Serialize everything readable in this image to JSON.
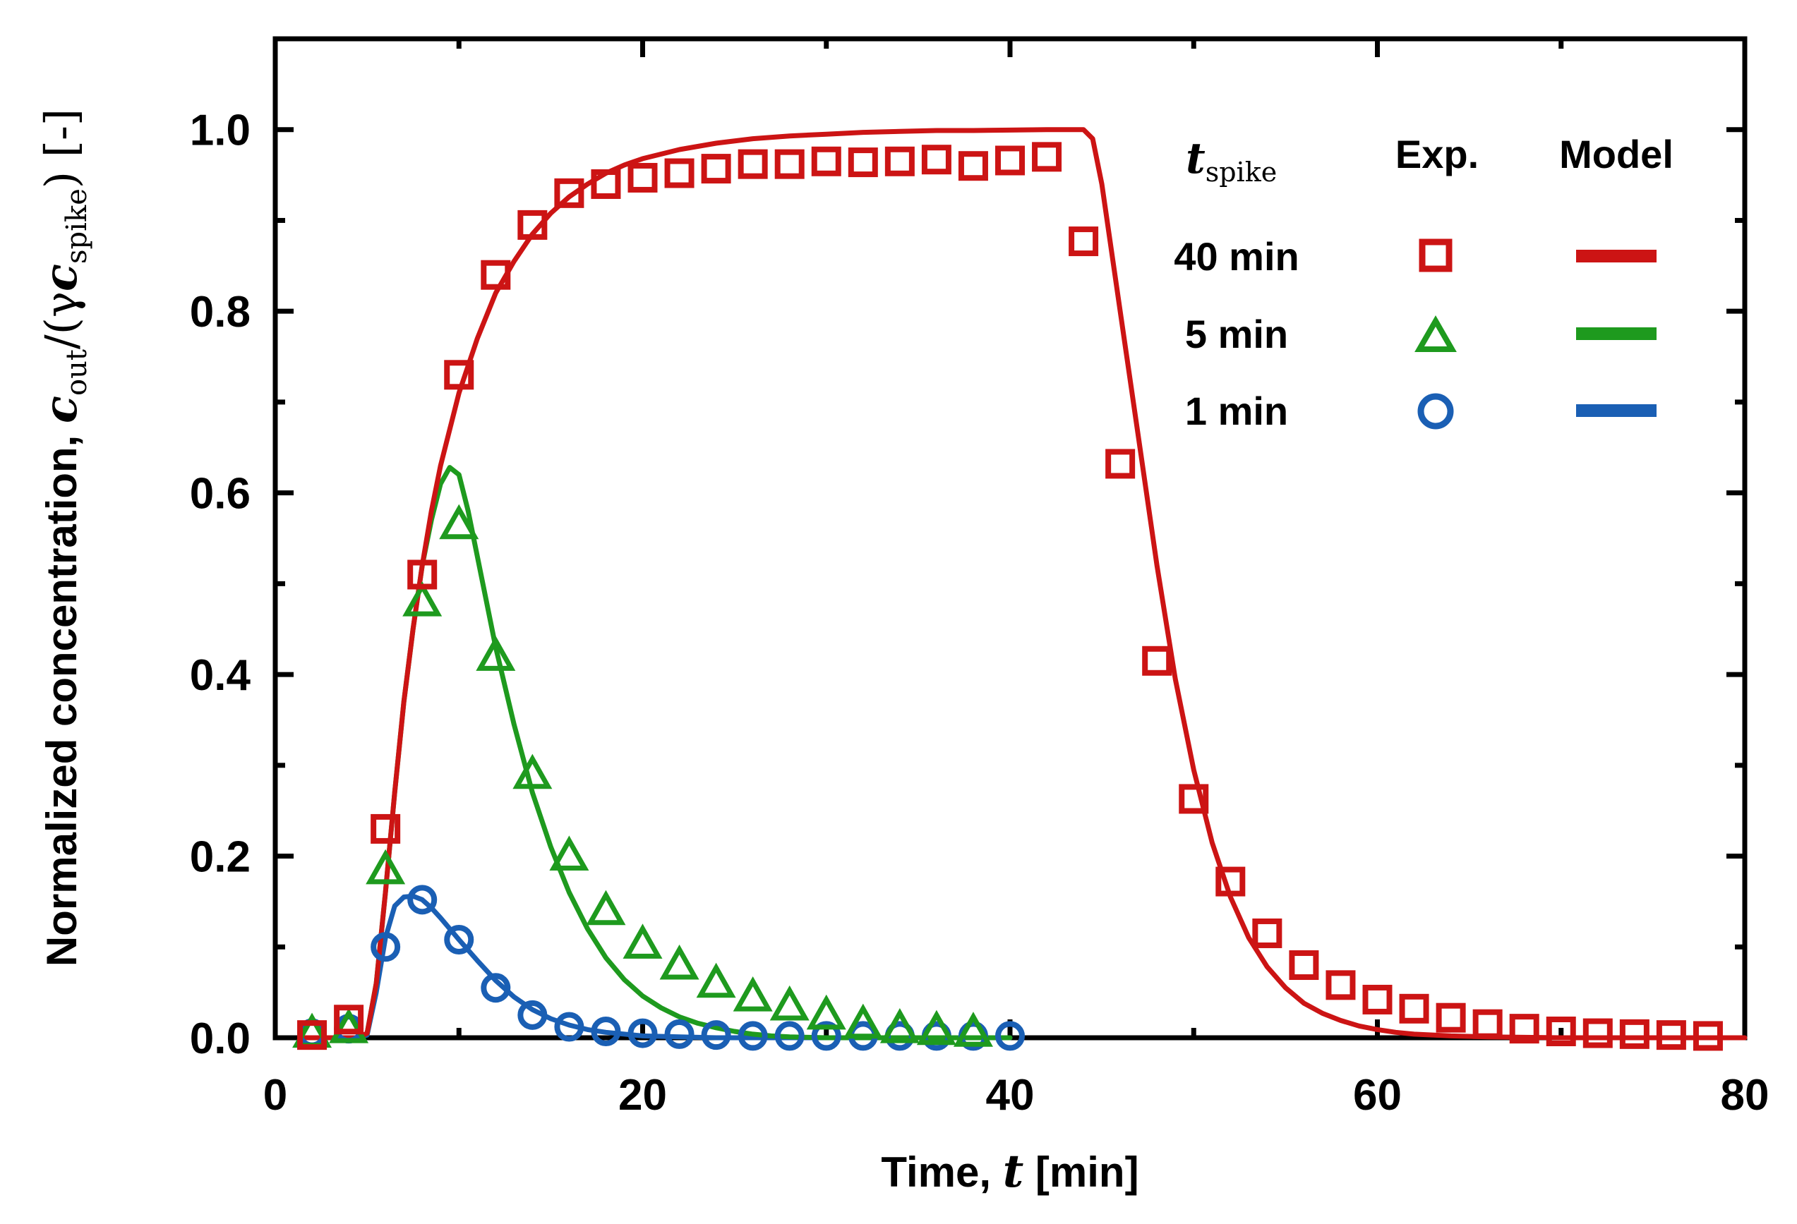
{
  "chart_data": {
    "type": "line",
    "title": "",
    "xlabel": "Time, t [min]",
    "xlabel_parts": {
      "prefix": "Time, ",
      "var": "t",
      "suffix": " [min]"
    },
    "ylabel": "Normalized concentration, c_out/(γ c_spike) [-]",
    "ylabel_parts": {
      "prefix": "Normalized concentration, ",
      "var": "c",
      "sub_out": "out",
      "open": "/(γ",
      "var2": "c",
      "sub_spike": "spike",
      "close": ") [-]"
    },
    "xlim": [
      0,
      80
    ],
    "ylim": [
      0,
      1.1
    ],
    "xticks": [
      0,
      20,
      40,
      60,
      80
    ],
    "xtick_labels": [
      "0",
      "20",
      "40",
      "60",
      "80"
    ],
    "yticks": [
      0.0,
      0.2,
      0.4,
      0.6,
      0.8,
      1.0
    ],
    "ytick_labels": [
      "0.0",
      "0.2",
      "0.4",
      "0.6",
      "0.8",
      "1.0"
    ],
    "legend": {
      "position": "top-right",
      "header_var": "t",
      "header_sub": "spike",
      "header_exp": "Exp.",
      "header_model": "Model",
      "entries": [
        "40 min",
        "5 min",
        "1 min"
      ]
    },
    "series": [
      {
        "name": "40 min",
        "color": "#cc1414",
        "marker": "square",
        "exp_x": [
          2,
          4,
          6,
          8,
          10,
          12,
          14,
          16,
          18,
          20,
          22,
          24,
          26,
          28,
          30,
          32,
          34,
          36,
          38,
          40,
          42,
          44,
          46,
          48,
          50,
          52,
          54,
          56,
          58,
          60,
          62,
          64,
          66,
          68,
          70,
          72,
          74,
          76,
          78
        ],
        "exp_y": [
          0.003,
          0.02,
          0.23,
          0.51,
          0.73,
          0.84,
          0.895,
          0.93,
          0.94,
          0.947,
          0.952,
          0.957,
          0.962,
          0.962,
          0.965,
          0.964,
          0.965,
          0.967,
          0.96,
          0.966,
          0.97,
          0.877,
          0.632,
          0.415,
          0.263,
          0.172,
          0.115,
          0.08,
          0.058,
          0.042,
          0.032,
          0.022,
          0.015,
          0.01,
          0.007,
          0.005,
          0.004,
          0.003,
          0.002
        ],
        "model_x": [
          1.5,
          3,
          4.5,
          5,
          5.5,
          6,
          6.5,
          7,
          7.5,
          8,
          8.5,
          9,
          10,
          11,
          12,
          13,
          14,
          15,
          16,
          17,
          18,
          19,
          20,
          22,
          24,
          26,
          28,
          30,
          32,
          34,
          36,
          38,
          40,
          42,
          44,
          44.5,
          45,
          46,
          47,
          48,
          49,
          50,
          51,
          52,
          53,
          54,
          55,
          56,
          57,
          58,
          59,
          60,
          61,
          62,
          63,
          64,
          66,
          68,
          70,
          80
        ],
        "model_y": [
          0,
          0,
          0,
          0.005,
          0.06,
          0.16,
          0.27,
          0.37,
          0.45,
          0.52,
          0.58,
          0.63,
          0.71,
          0.77,
          0.82,
          0.855,
          0.885,
          0.908,
          0.926,
          0.94,
          0.952,
          0.961,
          0.968,
          0.978,
          0.985,
          0.99,
          0.993,
          0.995,
          0.997,
          0.998,
          0.999,
          0.999,
          0.9995,
          1.0,
          1.0,
          0.99,
          0.94,
          0.8,
          0.66,
          0.52,
          0.395,
          0.295,
          0.215,
          0.155,
          0.11,
          0.078,
          0.055,
          0.038,
          0.027,
          0.019,
          0.013,
          0.009,
          0.006,
          0.004,
          0.003,
          0.002,
          0.001,
          0.0005,
          0,
          0
        ]
      },
      {
        "name": "5 min",
        "color": "#1e9a1e",
        "marker": "triangle",
        "exp_x": [
          2,
          4,
          6,
          8,
          10,
          12,
          14,
          16,
          18,
          20,
          22,
          24,
          26,
          28,
          30,
          32,
          34,
          36,
          38
        ],
        "exp_y": [
          0.005,
          0.01,
          0.185,
          0.48,
          0.565,
          0.42,
          0.29,
          0.2,
          0.14,
          0.103,
          0.08,
          0.06,
          0.045,
          0.035,
          0.025,
          0.015,
          0.01,
          0.008,
          0.006
        ],
        "model_x": [
          1.5,
          3,
          4.5,
          5,
          5.5,
          6,
          6.5,
          7,
          7.5,
          8,
          8.5,
          9,
          9.5,
          10,
          10.5,
          11,
          12,
          13,
          14,
          15,
          16,
          17,
          18,
          19,
          20,
          21,
          22,
          23,
          24,
          25,
          26,
          27,
          28,
          29,
          30,
          40
        ],
        "model_y": [
          0,
          0,
          0,
          0.005,
          0.06,
          0.16,
          0.27,
          0.37,
          0.45,
          0.52,
          0.57,
          0.61,
          0.628,
          0.62,
          0.58,
          0.53,
          0.43,
          0.345,
          0.27,
          0.21,
          0.16,
          0.12,
          0.088,
          0.064,
          0.046,
          0.033,
          0.023,
          0.016,
          0.011,
          0.007,
          0.004,
          0.002,
          0.001,
          0.0005,
          0,
          0
        ]
      },
      {
        "name": "1 min",
        "color": "#1a5fb4",
        "marker": "circle",
        "exp_x": [
          2,
          4,
          6,
          8,
          10,
          12,
          14,
          16,
          18,
          20,
          22,
          24,
          26,
          28,
          30,
          32,
          34,
          36,
          38,
          40
        ],
        "exp_y": [
          0.005,
          0.01,
          0.1,
          0.152,
          0.108,
          0.055,
          0.025,
          0.012,
          0.007,
          0.005,
          0.004,
          0.003,
          0.002,
          0.002,
          0.002,
          0.002,
          0.002,
          0.002,
          0.002,
          0.002
        ],
        "model_x": [
          1.5,
          3,
          4.5,
          5,
          5.5,
          6,
          6.5,
          7,
          7.5,
          8,
          8.5,
          9,
          10,
          11,
          12,
          13,
          14,
          15,
          16,
          17,
          18,
          20,
          22,
          24,
          40
        ],
        "model_y": [
          0,
          0,
          0,
          0.003,
          0.05,
          0.11,
          0.145,
          0.155,
          0.156,
          0.152,
          0.143,
          0.132,
          0.108,
          0.085,
          0.063,
          0.045,
          0.031,
          0.021,
          0.014,
          0.009,
          0.006,
          0.002,
          0.001,
          0,
          0
        ]
      }
    ]
  }
}
